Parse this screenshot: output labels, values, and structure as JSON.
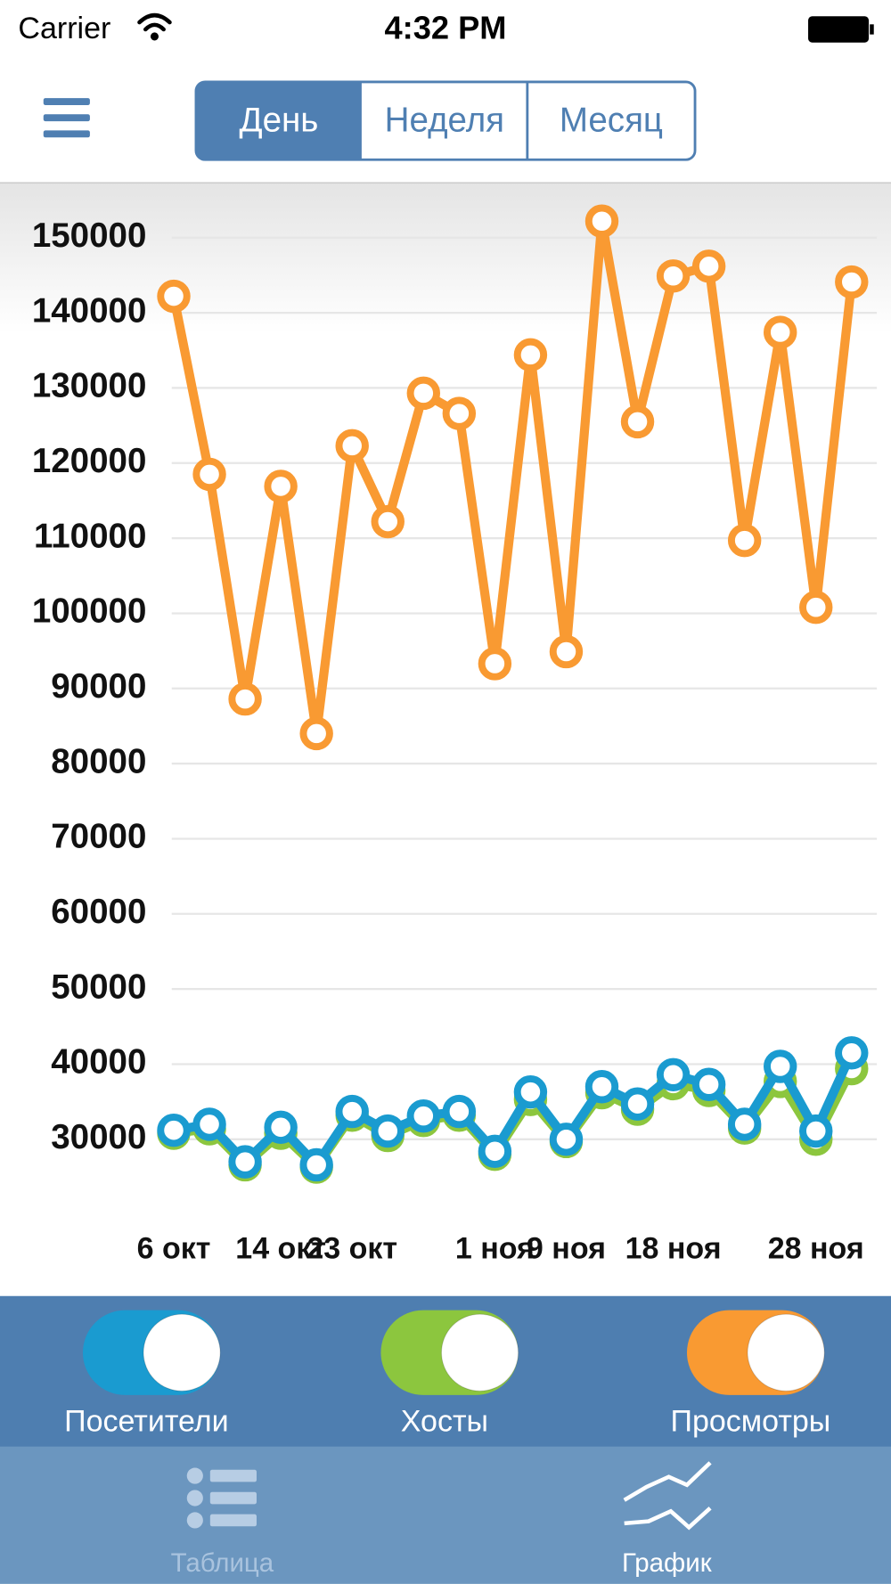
{
  "status_bar": {
    "carrier": "Carrier",
    "time": "4:32 PM"
  },
  "segments": [
    "День",
    "Неделя",
    "Месяц"
  ],
  "chart_data": {
    "type": "line",
    "categories": [
      "6 окт",
      null,
      null,
      "14 окт",
      null,
      "23 окт",
      null,
      null,
      null,
      "1 ноя",
      null,
      "9 ноя",
      null,
      null,
      "18 ноя",
      null,
      null,
      null,
      "28 ноя",
      null
    ],
    "series": [
      {
        "name": "Посетители",
        "color": "#1a9bd0",
        "values": [
          31200,
          32000,
          27000,
          31600,
          26600,
          33700,
          31100,
          33100,
          33700,
          28400,
          36300,
          30000,
          37000,
          34700,
          38600,
          37300,
          32000,
          39700,
          31100,
          41500
        ]
      },
      {
        "name": "Хосты",
        "color": "#8cc63e",
        "values": [
          30800,
          31400,
          26600,
          30800,
          26300,
          33200,
          30500,
          32500,
          33200,
          28000,
          35300,
          29700,
          36200,
          34000,
          37400,
          36500,
          31500,
          37700,
          30000,
          39400
        ]
      },
      {
        "name": "Просмотры",
        "color": "#f99a32",
        "values": [
          142200,
          118500,
          88600,
          116900,
          84000,
          122300,
          112200,
          129300,
          126600,
          93300,
          134400,
          94900,
          152200,
          125500,
          144900,
          146200,
          109700,
          137400,
          100800,
          144100
        ]
      }
    ],
    "ylim": [
      25000,
      155000
    ],
    "yticks": [
      30000,
      40000,
      50000,
      60000,
      70000,
      80000,
      90000,
      100000,
      110000,
      120000,
      130000,
      140000,
      150000
    ],
    "grid": true
  },
  "tabs": [
    "Таблица",
    "График"
  ]
}
